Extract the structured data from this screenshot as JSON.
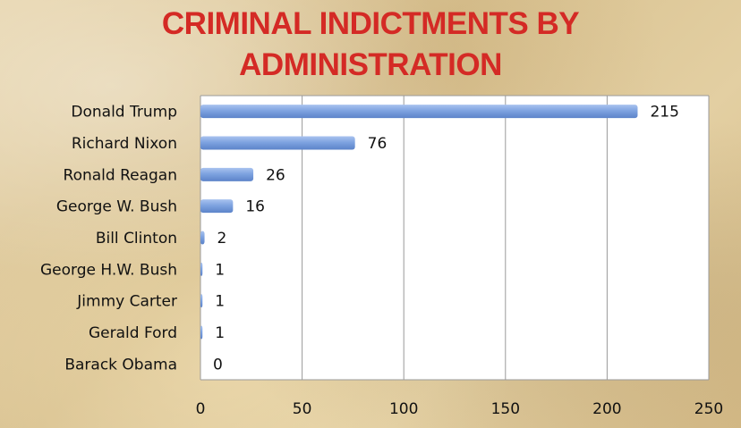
{
  "chart_data": {
    "type": "bar",
    "orientation": "horizontal",
    "title_line1": "Criminal Indictments by",
    "title_line2": "Administration",
    "categories": [
      "Donald Trump",
      "Richard Nixon",
      "Ronald Reagan",
      "George W. Bush",
      "Bill Clinton",
      "George H.W. Bush",
      "Jimmy Carter",
      "Gerald Ford",
      "Barack Obama"
    ],
    "values": [
      215,
      76,
      26,
      16,
      2,
      1,
      1,
      1,
      0
    ],
    "xlim": [
      0,
      250
    ],
    "xticks": [
      0,
      50,
      100,
      150,
      200,
      250
    ],
    "grid": "vertical",
    "bar_color": "#7ea3e0",
    "title_color": "#d42a25",
    "xlabel": "",
    "ylabel": ""
  }
}
